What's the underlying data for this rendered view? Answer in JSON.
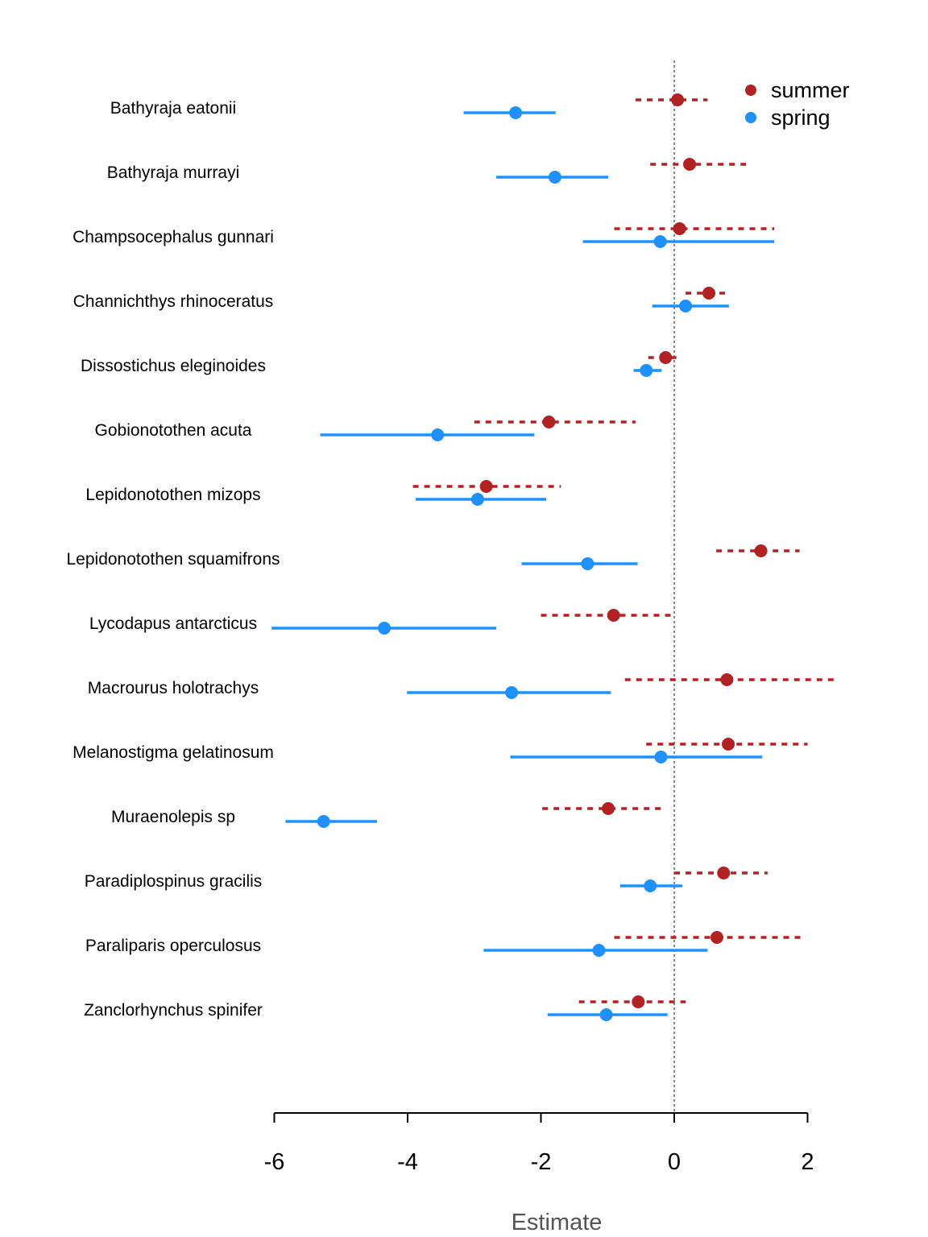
{
  "chart_data": {
    "type": "scatter",
    "subtype": "forest-plot",
    "title": "",
    "xlabel": "Estimate",
    "ylabel": "",
    "xlim": [
      -6,
      2
    ],
    "xticks": [
      "-6",
      "-4",
      "-2",
      "0",
      "2"
    ],
    "reference_line": 0,
    "legend": {
      "position": "top-right"
    },
    "categories": [
      "Bathyraja eatonii",
      "Bathyraja murrayi",
      "Champsocephalus gunnari",
      "Channichthys rhinoceratus",
      "Dissostichus eleginoides",
      "Gobionotothen acuta",
      "Lepidonotothen mizops",
      "Lepidonotothen squamifrons",
      "Lycodapus antarcticus",
      "Macrourus holotrachys",
      "Melanostigma gelatinosum",
      "Muraenolepis sp",
      "Paradiplospinus gracilis",
      "Paraliparis operculosus",
      "Zanclorhynchus spinifer"
    ],
    "series": [
      {
        "name": "summer",
        "color": "#b22222",
        "line_style": "dotted",
        "estimates": [
          0.05,
          0.23,
          0.08,
          0.52,
          -0.13,
          -1.88,
          -2.82,
          1.3,
          -0.91,
          0.79,
          0.81,
          -0.99,
          0.74,
          0.64,
          -0.54
        ],
        "lower": [
          -0.58,
          -0.36,
          -0.9,
          0.17,
          -0.39,
          -3.0,
          -3.92,
          0.63,
          -2.0,
          -0.74,
          -0.42,
          -1.98,
          0.0,
          -0.9,
          -1.43
        ],
        "upper": [
          0.5,
          1.08,
          1.5,
          0.84,
          0.1,
          -0.58,
          -1.7,
          1.88,
          0.0,
          2.45,
          2.0,
          -0.12,
          1.4,
          1.9,
          0.17
        ]
      },
      {
        "name": "spring",
        "color": "#1e90ff",
        "line_style": "solid",
        "estimates": [
          -2.38,
          -1.79,
          -0.21,
          0.17,
          -0.42,
          -3.55,
          -2.95,
          -1.3,
          -4.35,
          -2.44,
          -0.2,
          -5.26,
          -0.36,
          -1.13,
          -1.02
        ],
        "lower": [
          -3.16,
          -2.67,
          -1.37,
          -0.33,
          -0.61,
          -5.31,
          -3.88,
          -2.29,
          -6.04,
          -4.01,
          -2.46,
          -5.83,
          -0.81,
          -2.86,
          -1.9
        ],
        "upper": [
          -1.78,
          -0.99,
          1.5,
          0.82,
          -0.19,
          -2.1,
          -1.92,
          -0.55,
          -2.67,
          -0.95,
          1.32,
          -4.46,
          0.12,
          0.5,
          -0.1
        ]
      }
    ]
  }
}
